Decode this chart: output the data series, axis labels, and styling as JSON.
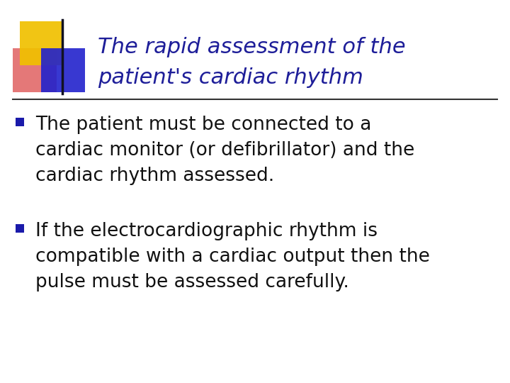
{
  "title_line1": "The rapid assessment of the",
  "title_line2": "patient's cardiac rhythm",
  "title_color": "#1e1e99",
  "title_fontsize": 22,
  "bullet1_line1": "The patient must be connected to a",
  "bullet1_line2": "cardiac monitor (or defibrillator) and the",
  "bullet1_line3": "cardiac rhythm assessed.",
  "bullet2_line1": "If the electrocardiographic rhythm is",
  "bullet2_line2": "compatible with a cardiac output then the",
  "bullet2_line3": "pulse must be assessed carefully.",
  "body_fontsize": 19,
  "body_color": "#111111",
  "bullet_color": "#1a1aaa",
  "bg_color": "#ffffff",
  "line_color": "#555555",
  "logo_yellow": "#f0c000",
  "logo_pink": "#e06060",
  "logo_blue": "#2222cc"
}
